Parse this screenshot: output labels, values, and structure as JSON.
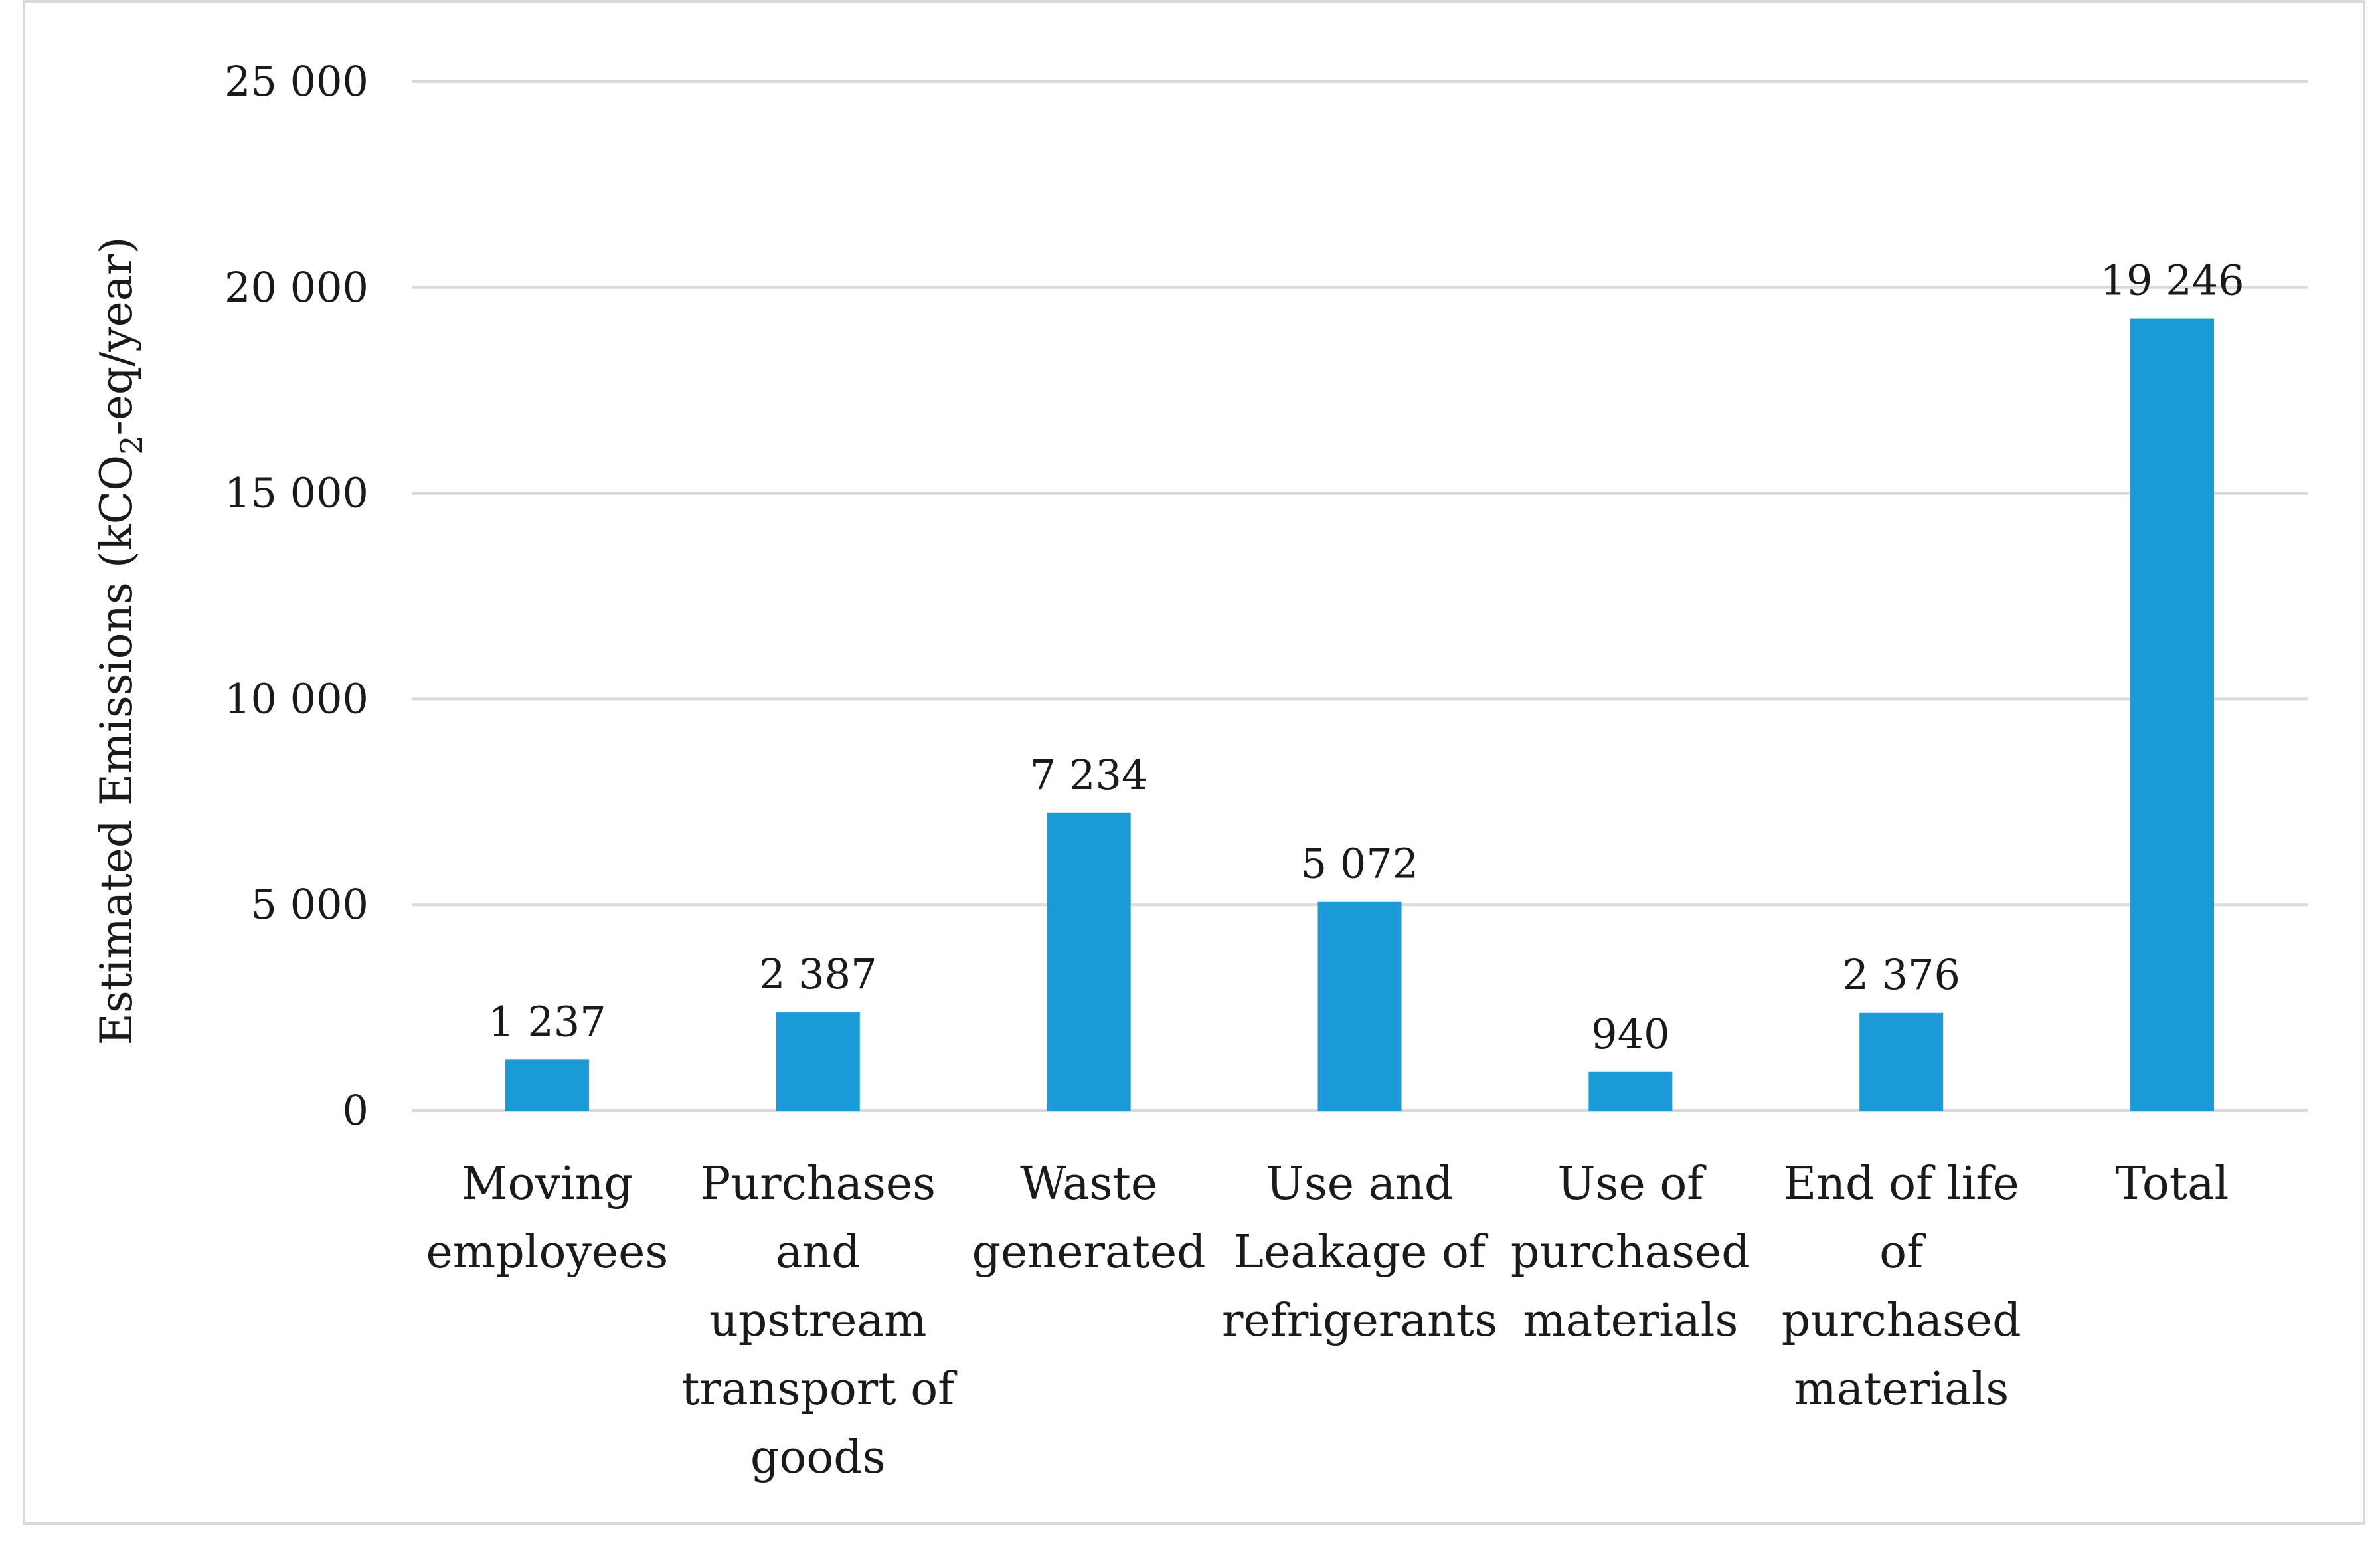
{
  "chart_data": {
    "type": "bar",
    "title": "",
    "xlabel": "",
    "ylabel": "Estimated Emissions (kCO₂-eq/year)",
    "ylabel_parts": {
      "prefix": "Estimated Emissions (kCO",
      "subscript": "2",
      "suffix": "-eq/year)"
    },
    "ylim": [
      0,
      25000
    ],
    "yticks": [
      0,
      5000,
      10000,
      15000,
      20000,
      25000
    ],
    "ytick_labels": [
      "0",
      "5 000",
      "10 000",
      "15 000",
      "20 000",
      "25 000"
    ],
    "grid": true,
    "bar_color": "#1a9ad6",
    "grid_color": "#d9d9d9",
    "categories": [
      [
        "Moving",
        "employees"
      ],
      [
        "Purchases",
        "and",
        "upstream",
        "transport of",
        "goods"
      ],
      [
        "Waste",
        "generated"
      ],
      [
        "Use and",
        "Leakage of",
        "refrigerants"
      ],
      [
        "Use of",
        "purchased",
        "materials"
      ],
      [
        "End of life",
        "of",
        "purchased",
        "materials"
      ],
      [
        "Total"
      ]
    ],
    "values": [
      1237,
      2387,
      7234,
      5072,
      940,
      2376,
      19246
    ],
    "value_labels": [
      "1 237",
      "2 387",
      "7 234",
      "5 072",
      "940",
      "2 376",
      "19 246"
    ]
  }
}
